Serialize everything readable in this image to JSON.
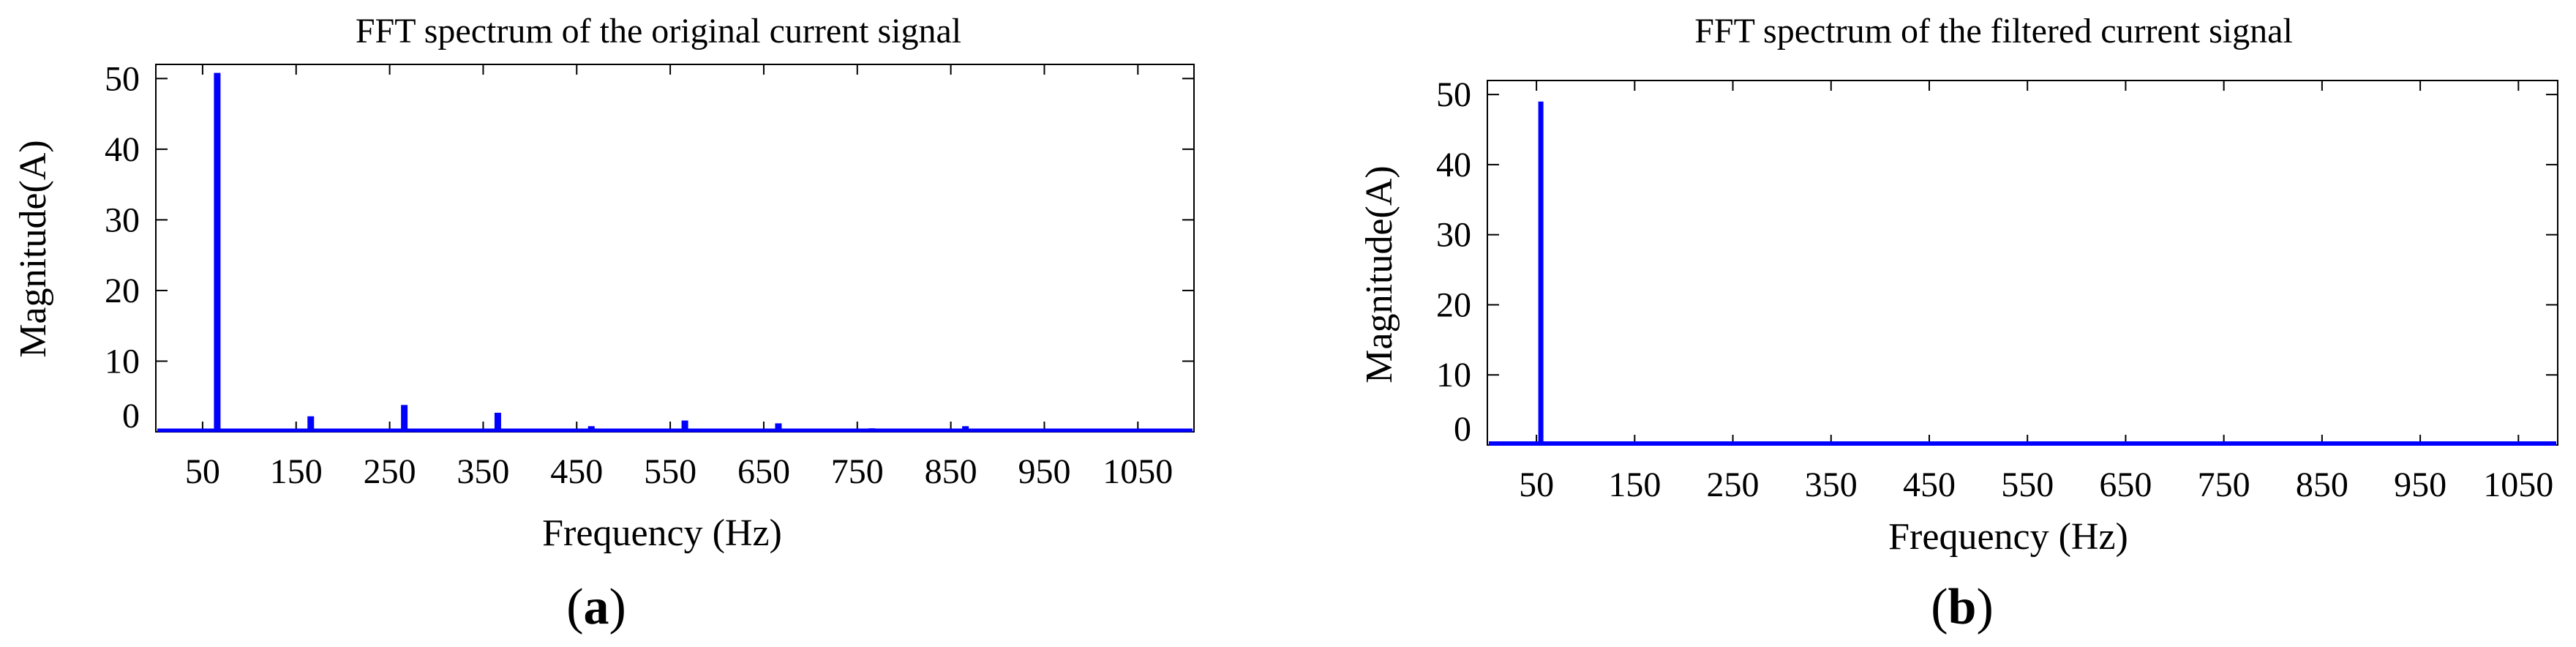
{
  "colors": {
    "bar": "#0000ff",
    "axis": "#000000"
  },
  "panels": [
    {
      "label_open": "(",
      "label_letter": "a",
      "label_close": ")"
    },
    {
      "label_open": "(",
      "label_letter": "b",
      "label_close": ")"
    }
  ],
  "chart_data": [
    {
      "type": "bar",
      "title": "FFT spectrum of the original current signal",
      "xlabel": "Frequency (Hz)",
      "ylabel": "Magnitude(A)",
      "xlim": [
        0,
        1110
      ],
      "ylim": [
        0,
        52
      ],
      "xticks": [
        50,
        150,
        250,
        350,
        450,
        550,
        650,
        750,
        850,
        950,
        1050
      ],
      "yticks": [
        0,
        10,
        20,
        30,
        40,
        50
      ],
      "x": [
        50,
        150,
        250,
        350,
        450,
        550,
        650,
        750,
        850,
        950,
        1050
      ],
      "values": [
        50.8,
        2.2,
        3.8,
        2.7,
        0.8,
        1.6,
        1.2,
        0.5,
        0.8,
        0.3,
        0.2
      ]
    },
    {
      "type": "bar",
      "title": "FFT spectrum of the filtered current signal",
      "xlabel": "Frequency (Hz)",
      "ylabel": "Magnitude(A)",
      "xlim": [
        0,
        1090
      ],
      "ylim": [
        0,
        52
      ],
      "xticks": [
        50,
        150,
        250,
        350,
        450,
        550,
        650,
        750,
        850,
        950,
        1050
      ],
      "yticks": [
        0,
        10,
        20,
        30,
        40,
        50
      ],
      "x": [
        50
      ],
      "values": [
        49
      ]
    }
  ]
}
